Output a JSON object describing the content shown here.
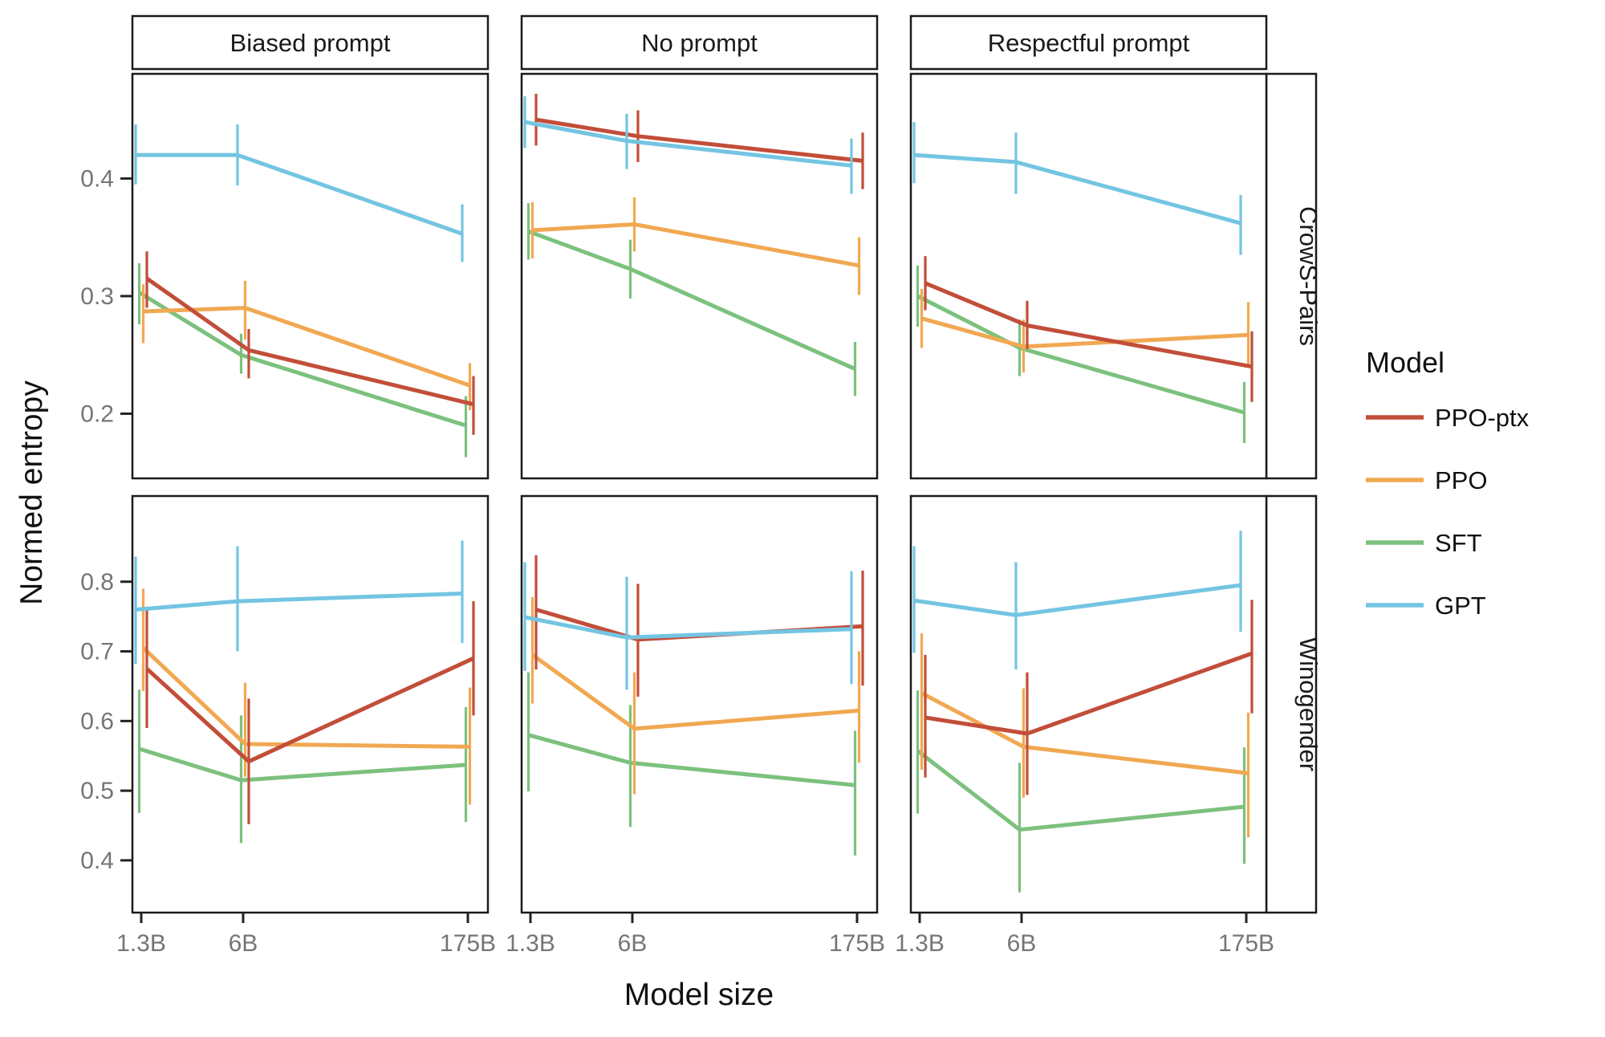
{
  "figure": {
    "y_axis_label": "Normed entropy",
    "x_axis_label": "Model size",
    "legend": {
      "title": "Model",
      "items": [
        {
          "label": "PPO-ptx",
          "color": "#c24e39"
        },
        {
          "label": "PPO",
          "color": "#f1a852"
        },
        {
          "label": "SFT",
          "color": "#7cc17e"
        },
        {
          "label": "GPT",
          "color": "#73c5e2"
        }
      ]
    },
    "facet_columns": [
      "Biased prompt",
      "No prompt",
      "Respectful prompt"
    ],
    "facet_rows": [
      "CrowS-Pairs",
      "Winogender"
    ],
    "x_tick_labels": [
      "1.3B",
      "6B",
      "175B"
    ]
  },
  "chart_data": {
    "type": "line",
    "title": "",
    "xlabel": "Model size",
    "ylabel": "Normed entropy",
    "x_values": [
      1.3,
      6,
      175
    ],
    "x_scale": "log",
    "x_tick_labels": [
      "1.3B",
      "6B",
      "175B"
    ],
    "grid": false,
    "legend_position": "right",
    "error_bars": true,
    "rows": [
      {
        "facet_row": "CrowS-Pairs",
        "ylim": [
          0.145,
          0.489
        ],
        "yticks": [
          0.4,
          0.3,
          0.2
        ],
        "panels": [
          {
            "facet_col": "Biased prompt",
            "series": [
              {
                "name": "PPO-ptx",
                "values": [
                  0.315,
                  0.254,
                  0.208
                ],
                "err_lo": [
                  0.29,
                  0.23,
                  0.182
                ],
                "err_hi": [
                  0.338,
                  0.272,
                  0.232
                ]
              },
              {
                "name": "PPO",
                "values": [
                  0.287,
                  0.29,
                  0.224
                ],
                "err_lo": [
                  0.26,
                  0.263,
                  0.203
                ],
                "err_hi": [
                  0.31,
                  0.313,
                  0.243
                ]
              },
              {
                "name": "SFT",
                "values": [
                  0.303,
                  0.25,
                  0.19
                ],
                "err_lo": [
                  0.276,
                  0.234,
                  0.163
                ],
                "err_hi": [
                  0.328,
                  0.268,
                  0.215
                ]
              },
              {
                "name": "GPT",
                "values": [
                  0.42,
                  0.42,
                  0.353
                ],
                "err_lo": [
                  0.395,
                  0.394,
                  0.329
                ],
                "err_hi": [
                  0.446,
                  0.446,
                  0.378
                ]
              }
            ]
          },
          {
            "facet_col": "No prompt",
            "series": [
              {
                "name": "PPO-ptx",
                "values": [
                  0.45,
                  0.436,
                  0.415
                ],
                "err_lo": [
                  0.428,
                  0.414,
                  0.391
                ],
                "err_hi": [
                  0.472,
                  0.458,
                  0.439
                ]
              },
              {
                "name": "PPO",
                "values": [
                  0.356,
                  0.361,
                  0.326
                ],
                "err_lo": [
                  0.332,
                  0.338,
                  0.301
                ],
                "err_hi": [
                  0.38,
                  0.384,
                  0.35
                ]
              },
              {
                "name": "SFT",
                "values": [
                  0.355,
                  0.323,
                  0.238
                ],
                "err_lo": [
                  0.331,
                  0.298,
                  0.215
                ],
                "err_hi": [
                  0.379,
                  0.348,
                  0.261
                ]
              },
              {
                "name": "GPT",
                "values": [
                  0.448,
                  0.432,
                  0.411
                ],
                "err_lo": [
                  0.426,
                  0.408,
                  0.387
                ],
                "err_hi": [
                  0.47,
                  0.455,
                  0.434
                ]
              }
            ]
          },
          {
            "facet_col": "Respectful prompt",
            "series": [
              {
                "name": "PPO-ptx",
                "values": [
                  0.311,
                  0.275,
                  0.24
                ],
                "err_lo": [
                  0.288,
                  0.255,
                  0.21
                ],
                "err_hi": [
                  0.334,
                  0.296,
                  0.27
                ]
              },
              {
                "name": "PPO",
                "values": [
                  0.281,
                  0.257,
                  0.267
                ],
                "err_lo": [
                  0.256,
                  0.235,
                  0.24
                ],
                "err_hi": [
                  0.306,
                  0.28,
                  0.295
                ]
              },
              {
                "name": "SFT",
                "values": [
                  0.3,
                  0.256,
                  0.201
                ],
                "err_lo": [
                  0.274,
                  0.232,
                  0.175
                ],
                "err_hi": [
                  0.326,
                  0.28,
                  0.227
                ]
              },
              {
                "name": "GPT",
                "values": [
                  0.42,
                  0.414,
                  0.362
                ],
                "err_lo": [
                  0.396,
                  0.387,
                  0.335
                ],
                "err_hi": [
                  0.448,
                  0.439,
                  0.386
                ]
              }
            ]
          }
        ]
      },
      {
        "facet_row": "Winogender",
        "ylim": [
          0.325,
          0.923
        ],
        "yticks": [
          0.8,
          0.7,
          0.6,
          0.5,
          0.4
        ],
        "panels": [
          {
            "facet_col": "Biased prompt",
            "series": [
              {
                "name": "PPO-ptx",
                "values": [
                  0.675,
                  0.542,
                  0.69
                ],
                "err_lo": [
                  0.59,
                  0.452,
                  0.608
                ],
                "err_hi": [
                  0.76,
                  0.632,
                  0.772
                ]
              },
              {
                "name": "PPO",
                "values": [
                  0.705,
                  0.567,
                  0.563
                ],
                "err_lo": [
                  0.643,
                  0.52,
                  0.48
                ],
                "err_hi": [
                  0.79,
                  0.655,
                  0.648
                ]
              },
              {
                "name": "SFT",
                "values": [
                  0.56,
                  0.515,
                  0.537
                ],
                "err_lo": [
                  0.468,
                  0.425,
                  0.455
                ],
                "err_hi": [
                  0.645,
                  0.608,
                  0.62
                ]
              },
              {
                "name": "GPT",
                "values": [
                  0.76,
                  0.772,
                  0.783
                ],
                "err_lo": [
                  0.682,
                  0.7,
                  0.712
                ],
                "err_hi": [
                  0.836,
                  0.851,
                  0.859
                ]
              }
            ]
          },
          {
            "facet_col": "No prompt",
            "series": [
              {
                "name": "PPO-ptx",
                "values": [
                  0.76,
                  0.717,
                  0.736
                ],
                "err_lo": [
                  0.674,
                  0.635,
                  0.651
                ],
                "err_hi": [
                  0.838,
                  0.797,
                  0.816
                ]
              },
              {
                "name": "PPO",
                "values": [
                  0.695,
                  0.589,
                  0.615
                ],
                "err_lo": [
                  0.625,
                  0.495,
                  0.54
                ],
                "err_hi": [
                  0.778,
                  0.67,
                  0.7
                ]
              },
              {
                "name": "SFT",
                "values": [
                  0.58,
                  0.54,
                  0.508
                ],
                "err_lo": [
                  0.499,
                  0.448,
                  0.407
                ],
                "err_hi": [
                  0.67,
                  0.623,
                  0.586
                ]
              },
              {
                "name": "GPT",
                "values": [
                  0.749,
                  0.72,
                  0.732
                ],
                "err_lo": [
                  0.672,
                  0.645,
                  0.653
                ],
                "err_hi": [
                  0.828,
                  0.807,
                  0.815
                ]
              }
            ]
          },
          {
            "facet_col": "Respectful prompt",
            "series": [
              {
                "name": "PPO-ptx",
                "values": [
                  0.605,
                  0.582,
                  0.697
                ],
                "err_lo": [
                  0.519,
                  0.494,
                  0.611
                ],
                "err_hi": [
                  0.695,
                  0.67,
                  0.774
                ]
              },
              {
                "name": "PPO",
                "values": [
                  0.64,
                  0.563,
                  0.525
                ],
                "err_lo": [
                  0.53,
                  0.49,
                  0.433
                ],
                "err_hi": [
                  0.726,
                  0.647,
                  0.612
                ]
              },
              {
                "name": "SFT",
                "values": [
                  0.557,
                  0.444,
                  0.477
                ],
                "err_lo": [
                  0.467,
                  0.354,
                  0.395
                ],
                "err_hi": [
                  0.644,
                  0.54,
                  0.562
                ]
              },
              {
                "name": "GPT",
                "values": [
                  0.773,
                  0.752,
                  0.795
                ],
                "err_lo": [
                  0.698,
                  0.674,
                  0.728
                ],
                "err_hi": [
                  0.851,
                  0.828,
                  0.873
                ]
              }
            ]
          }
        ]
      }
    ]
  }
}
